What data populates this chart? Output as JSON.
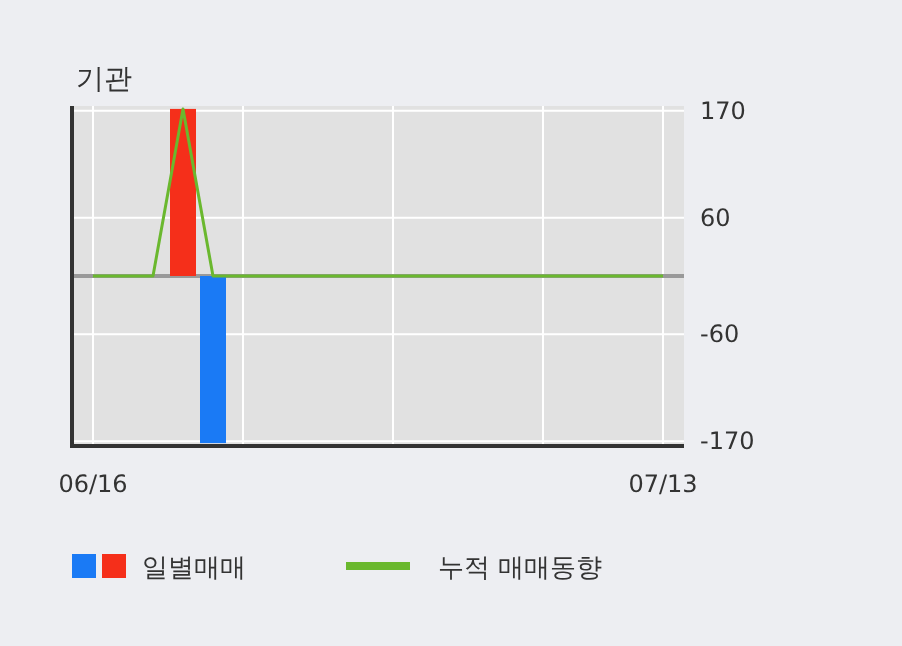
{
  "chart_data": {
    "type": "bar",
    "title": "기관",
    "categories": [
      "06/16",
      null,
      null,
      null,
      null,
      null,
      null,
      null,
      null,
      null,
      null,
      null,
      null,
      null,
      null,
      null,
      null,
      null,
      null,
      "07/13"
    ],
    "series": [
      {
        "name": "일별매매",
        "colors": [
          "#f52f1a",
          "#f52f1a",
          "#f52f1a",
          "#f52f1a",
          "#1a7af5",
          "#f52f1a",
          "#f52f1a",
          "#f52f1a",
          "#f52f1a",
          "#f52f1a",
          "#f52f1a",
          "#f52f1a",
          "#f52f1a",
          "#f52f1a",
          "#f52f1a",
          "#f52f1a",
          "#f52f1a",
          "#f52f1a",
          "#f52f1a",
          "#f52f1a"
        ],
        "values": [
          0,
          0,
          0,
          172,
          -172,
          0,
          0,
          0,
          0,
          0,
          0,
          0,
          0,
          0,
          0,
          0,
          0,
          0,
          0,
          0
        ]
      },
      {
        "name": "누적 매매동향",
        "type": "line",
        "color": "#6ab82e",
        "values": [
          0,
          0,
          0,
          172,
          0,
          0,
          0,
          0,
          0,
          0,
          0,
          0,
          0,
          0,
          0,
          0,
          0,
          0,
          0,
          0
        ]
      }
    ],
    "ylim": [
      -175,
      175
    ],
    "yticks": [
      -170,
      -60,
      60,
      170
    ],
    "ref_lines": [
      {
        "axis": "y",
        "value": 0,
        "color": "#999999"
      }
    ],
    "grid": true,
    "legend": "bottom"
  }
}
